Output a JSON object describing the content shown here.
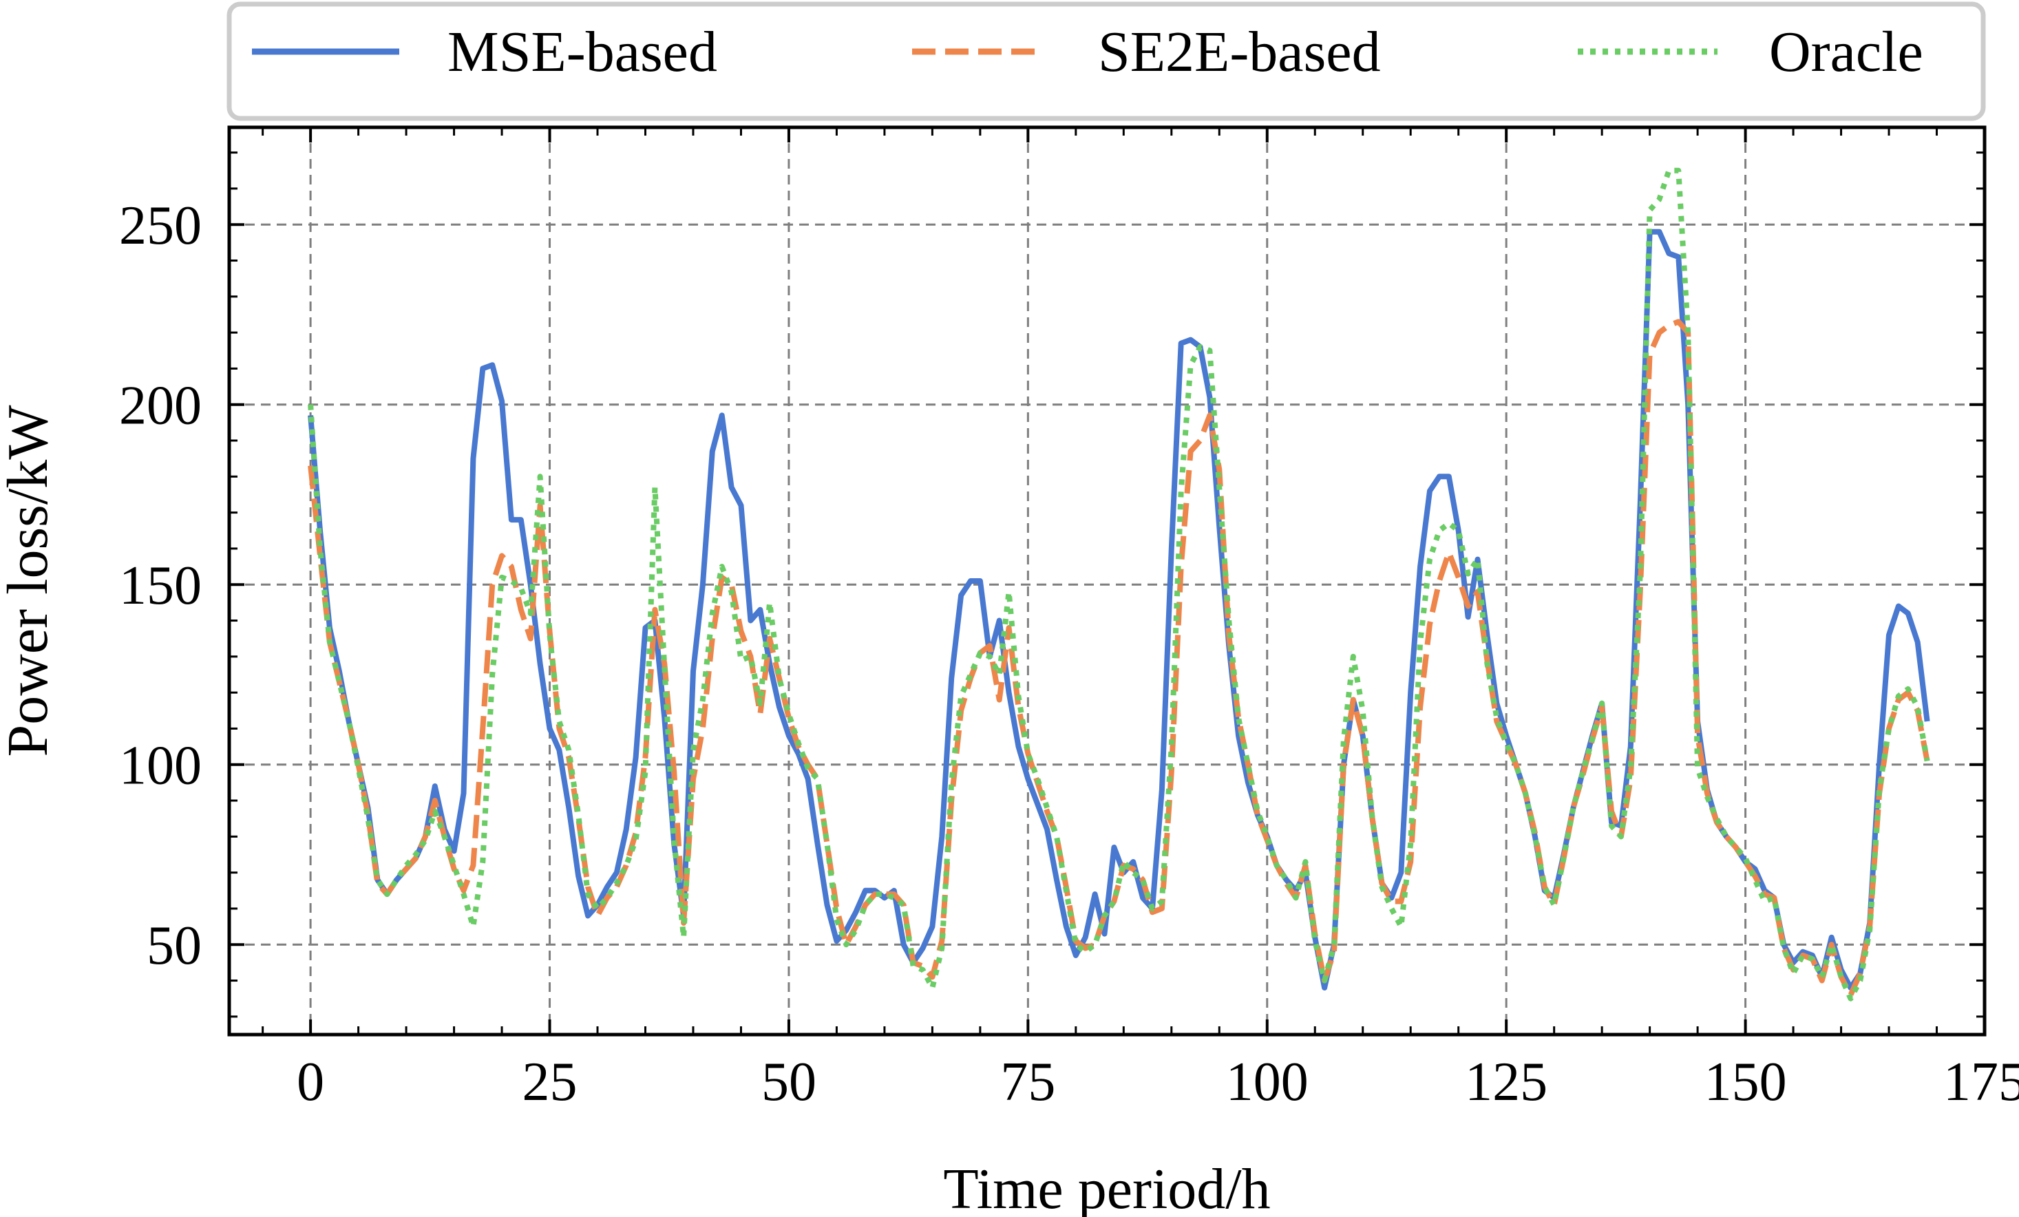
{
  "chart_data": {
    "type": "line",
    "title": "",
    "xlabel": "Time period/h",
    "ylabel": "Power loss/kW",
    "xlim": [
      -8.5,
      175
    ],
    "ylim": [
      25,
      277
    ],
    "xticks": [
      0,
      25,
      50,
      75,
      100,
      125,
      150,
      175
    ],
    "yticks": [
      50,
      100,
      150,
      200,
      250
    ],
    "x_tick_labels": [
      "0",
      "25",
      "50",
      "75",
      "100",
      "125",
      "150",
      "175"
    ],
    "y_tick_labels": [
      "50",
      "100",
      "150",
      "200",
      "250"
    ],
    "grid": true,
    "legend_position": "top (above plot, single row)",
    "series": [
      {
        "name": "MSE-based",
        "color": "#4878d0",
        "style": "solid",
        "values": [
          197,
          165,
          138,
          126,
          112,
          100,
          88,
          68,
          64,
          68,
          71,
          74,
          80,
          94,
          82,
          76,
          92,
          185,
          210,
          211,
          201,
          168,
          168,
          150,
          128,
          110,
          104,
          88,
          69,
          58,
          61,
          66,
          70,
          82,
          102,
          138,
          140,
          113,
          78,
          58,
          126,
          150,
          187,
          197,
          177,
          172,
          140,
          143,
          128,
          116,
          108,
          103,
          96,
          78,
          61,
          51,
          54,
          59,
          65,
          65,
          63,
          65,
          50,
          45,
          49,
          55,
          80,
          124,
          147,
          151,
          151,
          130,
          140,
          120,
          105,
          96,
          89,
          82,
          68,
          55,
          47,
          52,
          64,
          53,
          77,
          70,
          73,
          63,
          60,
          93,
          160,
          217,
          218,
          216,
          202,
          166,
          133,
          108,
          95,
          86,
          80,
          72,
          68,
          65,
          70,
          52,
          38,
          50,
          100,
          118,
          108,
          85,
          67,
          63,
          70,
          120,
          155,
          176,
          180,
          180,
          165,
          141,
          157,
          136,
          117,
          108,
          100,
          92,
          80,
          65,
          63,
          75,
          88,
          98,
          108,
          117,
          84,
          83,
          105,
          172,
          248,
          248,
          242,
          241,
          200,
          112,
          93,
          84,
          80,
          77,
          73,
          71,
          65,
          63,
          50,
          45,
          48,
          47,
          41,
          52,
          43,
          38,
          42,
          56,
          100,
          136,
          144,
          142,
          134,
          112
        ],
        "x_start": 0
      },
      {
        "name": "SE2E-based",
        "color": "#ee854a",
        "style": "dashed",
        "values": [
          183,
          158,
          134,
          123,
          112,
          100,
          86,
          67,
          64,
          68,
          71,
          74,
          80,
          90,
          80,
          71,
          65,
          72,
          110,
          150,
          158,
          155,
          143,
          135,
          172,
          137,
          110,
          102,
          85,
          66,
          58,
          63,
          66,
          72,
          81,
          102,
          143,
          128,
          98,
          56,
          96,
          110,
          135,
          152,
          150,
          137,
          130,
          114,
          135,
          124,
          113,
          105,
          100,
          96,
          78,
          60,
          50,
          55,
          61,
          64,
          64,
          64,
          61,
          45,
          44,
          41,
          51,
          90,
          115,
          124,
          131,
          133,
          118,
          138,
          116,
          103,
          95,
          87,
          80,
          66,
          51,
          49,
          50,
          58,
          62,
          72,
          71,
          68,
          59,
          60,
          98,
          155,
          187,
          190,
          197,
          182,
          136,
          113,
          100,
          86,
          79,
          72,
          67,
          63,
          72,
          53,
          40,
          48,
          100,
          118,
          108,
          85,
          67,
          62,
          62,
          73,
          116,
          139,
          151,
          159,
          152,
          144,
          148,
          129,
          112,
          106,
          100,
          92,
          81,
          66,
          61,
          74,
          88,
          97,
          107,
          116,
          87,
          80,
          96,
          148,
          214,
          220,
          222,
          223,
          220,
          108,
          92,
          84,
          80,
          77,
          73,
          69,
          64,
          63,
          49,
          43,
          47,
          46,
          40,
          50,
          41,
          36,
          42,
          55,
          92,
          110,
          118,
          120,
          115,
          101
        ],
        "x_start": 0
      },
      {
        "name": "Oracle",
        "color": "#6acc64",
        "style": "dotted",
        "values": [
          200,
          160,
          134,
          123,
          112,
          99,
          85,
          68,
          64,
          68,
          72,
          75,
          79,
          87,
          80,
          72,
          64,
          55,
          73,
          125,
          152,
          151,
          149,
          142,
          180,
          136,
          112,
          104,
          86,
          64,
          60,
          63,
          67,
          72,
          79,
          98,
          177,
          127,
          79,
          52,
          104,
          118,
          142,
          155,
          148,
          129,
          130,
          117,
          145,
          124,
          114,
          106,
          99,
          96,
          78,
          57,
          50,
          54,
          61,
          64,
          64,
          63,
          61,
          44,
          43,
          38,
          49,
          95,
          119,
          125,
          131,
          130,
          125,
          148,
          119,
          103,
          96,
          88,
          80,
          65,
          50,
          48,
          50,
          58,
          62,
          73,
          70,
          68,
          60,
          62,
          105,
          176,
          211,
          216,
          215,
          177,
          140,
          113,
          100,
          87,
          80,
          72,
          68,
          63,
          73,
          51,
          40,
          50,
          107,
          130,
          115,
          85,
          66,
          60,
          55,
          78,
          134,
          157,
          165,
          167,
          165,
          153,
          157,
          128,
          113,
          106,
          100,
          92,
          80,
          66,
          61,
          74,
          88,
          98,
          107,
          117,
          83,
          80,
          99,
          153,
          254,
          257,
          265,
          265,
          220,
          99,
          91,
          85,
          80,
          77,
          74,
          68,
          62,
          63,
          49,
          42,
          47,
          46,
          41,
          50,
          41,
          35,
          40,
          54,
          93,
          110,
          119,
          121,
          116,
          101
        ],
        "x_start": 0
      }
    ]
  }
}
